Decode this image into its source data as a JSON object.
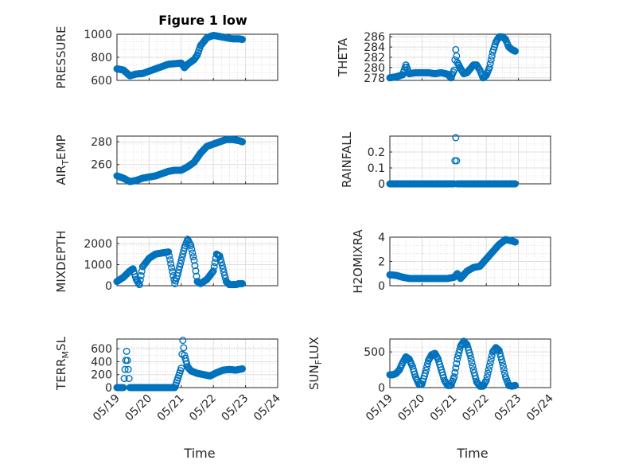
{
  "figure": {
    "title": "Figure 1 low",
    "marker_color": "#0072bd"
  },
  "chart_data": [
    {
      "type": "scatter",
      "name": "PRESSURE",
      "ylabel": "PRESSURE",
      "ylim": [
        600,
        1000
      ],
      "yticks": [
        600,
        800,
        1000
      ],
      "xlim": [
        "05/19",
        "05/24"
      ],
      "x_days": [
        0,
        0.2,
        0.4,
        0.6,
        0.8,
        1.0,
        1.2,
        1.4,
        1.6,
        1.8,
        2.0,
        2.1,
        2.2,
        2.4,
        2.5,
        2.6,
        2.8,
        3.0,
        3.2,
        3.4,
        3.6,
        3.8,
        3.9
      ],
      "y": [
        700,
        690,
        640,
        655,
        660,
        680,
        700,
        720,
        740,
        745,
        750,
        710,
        740,
        780,
        820,
        900,
        970,
        990,
        980,
        970,
        960,
        960,
        955
      ]
    },
    {
      "type": "scatter",
      "name": "THETA",
      "ylabel": "THETA",
      "ylim": [
        277.5,
        286.5
      ],
      "yticks": [
        278,
        280,
        282,
        284,
        286
      ],
      "xlim": [
        "05/19",
        "05/24"
      ],
      "x_days": [
        0,
        0.2,
        0.4,
        0.5,
        0.6,
        0.8,
        1.0,
        1.2,
        1.4,
        1.6,
        1.8,
        1.9,
        2.0,
        2.05,
        2.1,
        2.2,
        2.3,
        2.4,
        2.6,
        2.7,
        2.8,
        2.9,
        3.0,
        3.1,
        3.2,
        3.3,
        3.4,
        3.5,
        3.6,
        3.7,
        3.8,
        3.9
      ],
      "y": [
        278.0,
        278.2,
        278.6,
        280.5,
        278.8,
        279.0,
        279.0,
        279.0,
        278.8,
        279.0,
        278.7,
        278.0,
        279.5,
        283.5,
        281.0,
        279.8,
        278.8,
        279.0,
        280.5,
        280.5,
        279.5,
        278.0,
        278.5,
        280.0,
        283.0,
        285.0,
        286.0,
        286.0,
        285.5,
        284.0,
        283.5,
        283.2
      ]
    },
    {
      "type": "scatter",
      "name": "AIR_TEMP",
      "ylabel": "AIR_TEMP",
      "ylim": [
        243,
        285
      ],
      "yticks": [
        260,
        280
      ],
      "xlim": [
        "05/19",
        "05/24"
      ],
      "x_days": [
        0,
        0.2,
        0.4,
        0.6,
        0.8,
        1.0,
        1.2,
        1.4,
        1.6,
        1.8,
        2.0,
        2.2,
        2.4,
        2.6,
        2.8,
        3.0,
        3.2,
        3.4,
        3.6,
        3.8,
        3.9
      ],
      "y": [
        250,
        248,
        245,
        246,
        248,
        249,
        250,
        252,
        254,
        255,
        255,
        258,
        262,
        270,
        276,
        278,
        280,
        282,
        282,
        281,
        280
      ]
    },
    {
      "type": "scatter",
      "name": "RAINFALL",
      "ylabel": "RAINFALL",
      "ylim": [
        0,
        0.3
      ],
      "yticks": [
        0,
        0.1,
        0.2
      ],
      "xlim": [
        "05/19",
        "05/24"
      ],
      "x_days": [
        0,
        0.3,
        0.6,
        0.9,
        1.2,
        1.5,
        1.8,
        2.0,
        2.05,
        2.1,
        2.4,
        2.7,
        3.0,
        3.3,
        3.6,
        3.9
      ],
      "y": [
        0,
        0,
        0,
        0,
        0,
        0,
        0,
        0,
        0.29,
        0,
        0,
        0,
        0,
        0,
        0,
        0
      ]
    },
    {
      "type": "scatter",
      "name": "MIXDEPTH",
      "ylabel": "MIXDEPTH",
      "ylim": [
        0,
        2300
      ],
      "yticks": [
        0,
        1000,
        2000
      ],
      "xlim": [
        "05/19",
        "05/24"
      ],
      "x_days": [
        0,
        0.2,
        0.4,
        0.5,
        0.6,
        0.7,
        0.8,
        1.0,
        1.2,
        1.4,
        1.6,
        1.8,
        1.9,
        2.0,
        2.1,
        2.2,
        2.3,
        2.4,
        2.5,
        2.6,
        2.8,
        3.0,
        3.1,
        3.2,
        3.3,
        3.4,
        3.5,
        3.6,
        3.7,
        3.8,
        3.9
      ],
      "y": [
        200,
        400,
        700,
        800,
        300,
        50,
        900,
        1300,
        1500,
        1550,
        1600,
        100,
        600,
        1200,
        1800,
        2200,
        1900,
        1200,
        200,
        100,
        300,
        700,
        1500,
        1400,
        800,
        200,
        50,
        50,
        50,
        100,
        100
      ]
    },
    {
      "type": "scatter",
      "name": "H2OMIXRA",
      "ylabel": "H2OMIXRA",
      "ylim": [
        0,
        4
      ],
      "yticks": [
        0,
        2,
        4
      ],
      "xlim": [
        "05/19",
        "05/24"
      ],
      "x_days": [
        0,
        0.2,
        0.4,
        0.6,
        0.8,
        1.0,
        1.2,
        1.4,
        1.6,
        1.8,
        2.0,
        2.1,
        2.2,
        2.4,
        2.6,
        2.8,
        3.0,
        3.2,
        3.4,
        3.6,
        3.8,
        3.9
      ],
      "y": [
        0.9,
        0.85,
        0.7,
        0.6,
        0.6,
        0.6,
        0.6,
        0.6,
        0.6,
        0.6,
        0.7,
        1.0,
        0.6,
        1.2,
        1.5,
        1.6,
        2.2,
        2.8,
        3.4,
        3.8,
        3.7,
        3.6
      ]
    },
    {
      "type": "scatter",
      "name": "TERR_MSL",
      "ylabel": "TERR_MSL",
      "ylim": [
        0,
        750
      ],
      "yticks": [
        0,
        200,
        400,
        600
      ],
      "xlim": [
        "05/19",
        "05/24"
      ],
      "x_days": [
        0,
        0.2,
        0.3,
        0.35,
        0.4,
        0.6,
        0.8,
        1.0,
        1.2,
        1.4,
        1.6,
        1.8,
        2.0,
        2.05,
        2.1,
        2.2,
        2.3,
        2.5,
        2.7,
        2.9,
        3.1,
        3.3,
        3.5,
        3.7,
        3.9
      ],
      "y": [
        0,
        0,
        560,
        280,
        0,
        0,
        0,
        0,
        0,
        0,
        0,
        0,
        300,
        730,
        500,
        320,
        260,
        220,
        200,
        180,
        230,
        270,
        280,
        270,
        290
      ]
    },
    {
      "type": "scatter",
      "name": "SUN_FLUX",
      "ylabel": "SUN_FLUX",
      "ylim": [
        0,
        680
      ],
      "yticks": [
        0,
        500
      ],
      "xlim": [
        "05/19",
        "05/24"
      ],
      "x_days": [
        0,
        0.1,
        0.2,
        0.3,
        0.4,
        0.5,
        0.6,
        0.7,
        0.8,
        0.9,
        1.0,
        1.1,
        1.2,
        1.3,
        1.4,
        1.5,
        1.6,
        1.7,
        1.8,
        1.9,
        2.0,
        2.1,
        2.2,
        2.3,
        2.4,
        2.5,
        2.6,
        2.7,
        2.8,
        2.9,
        3.0,
        3.1,
        3.2,
        3.3,
        3.4,
        3.5,
        3.6,
        3.7,
        3.8,
        3.9
      ],
      "y": [
        180,
        180,
        200,
        250,
        350,
        430,
        400,
        300,
        150,
        50,
        50,
        200,
        380,
        460,
        480,
        400,
        250,
        100,
        30,
        30,
        150,
        400,
        580,
        650,
        600,
        450,
        250,
        80,
        20,
        20,
        100,
        300,
        500,
        560,
        520,
        350,
        150,
        30,
        20,
        30
      ]
    }
  ],
  "axes": {
    "xticks": [
      "05/19",
      "05/20",
      "05/21",
      "05/22",
      "05/23",
      "05/24"
    ],
    "xlabel_left": "Time",
    "xlabel_right": "Time"
  }
}
